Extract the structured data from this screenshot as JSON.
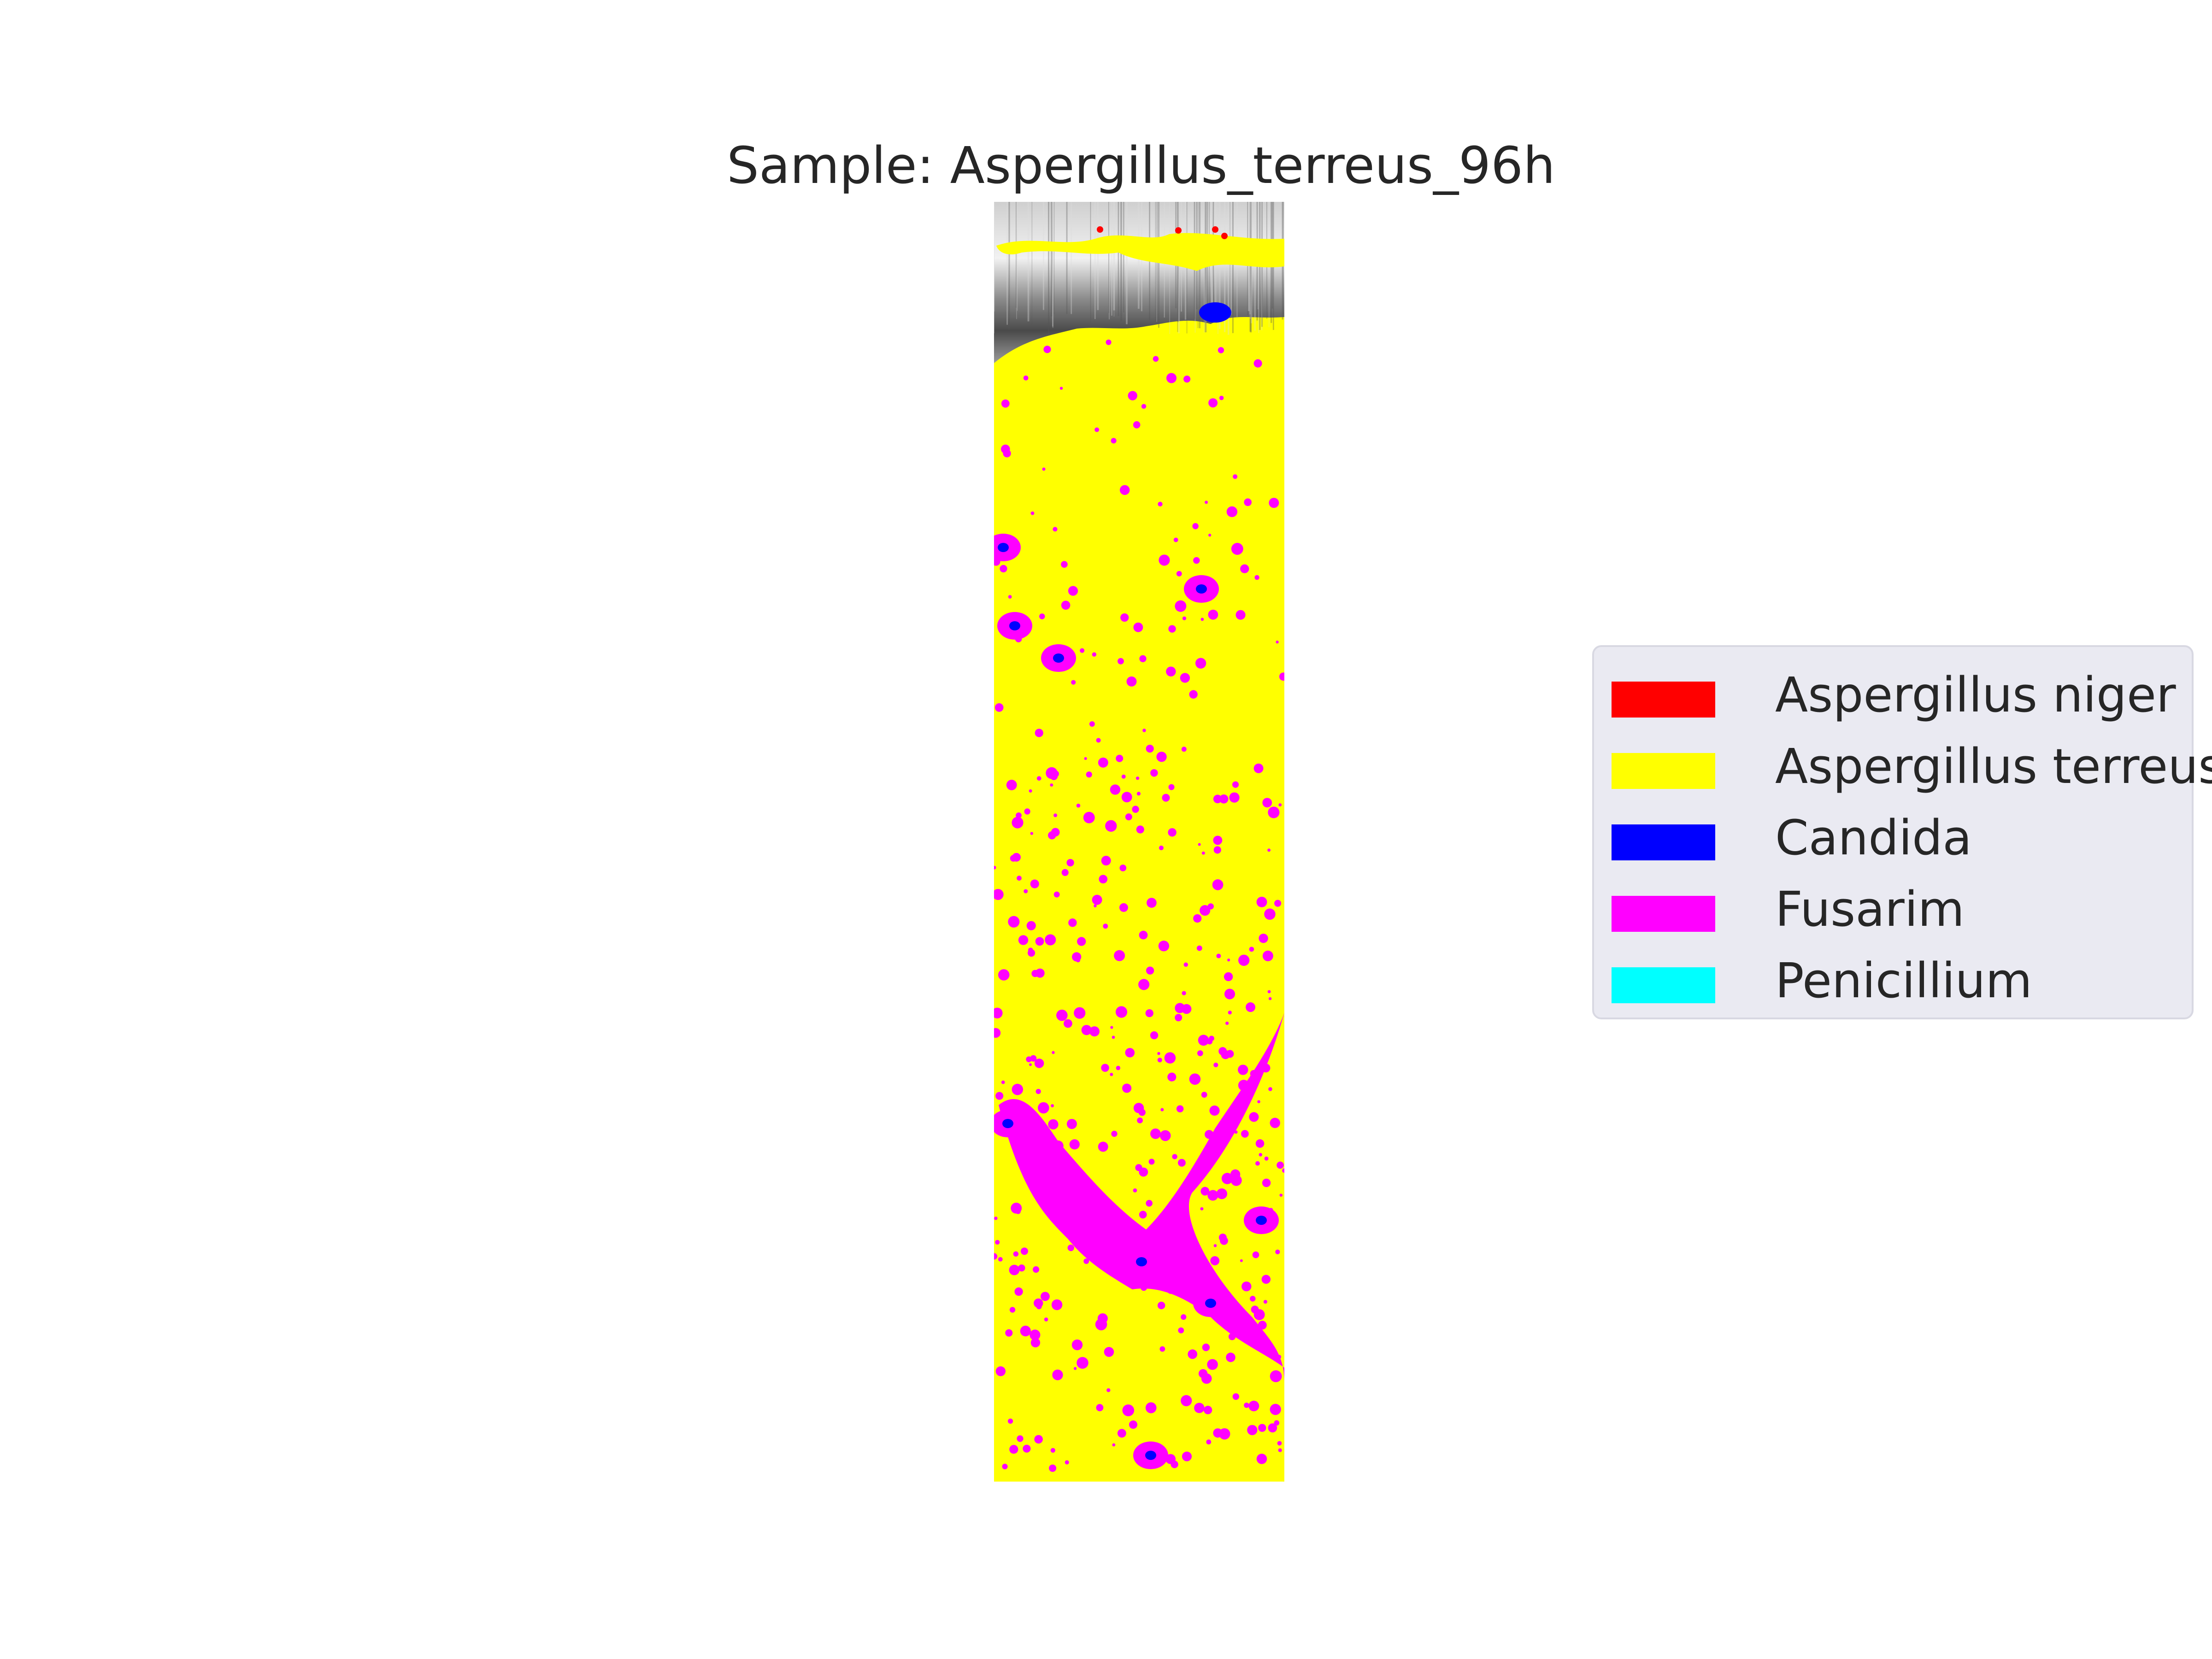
{
  "chart_data": {
    "type": "heatmap",
    "title": "Sample: Aspergillus_terreus_96h",
    "xlabel": "",
    "ylabel": "",
    "grid": false,
    "axes_visible": false,
    "legend_position": "right",
    "background_image": "grayscale",
    "categories": [
      "Aspergillus niger",
      "Aspergillus terreus",
      "Candida",
      "Fusarim",
      "Penicillium"
    ],
    "colors": {
      "Aspergillus niger": "#ff0000",
      "Aspergillus terreus": "#ffff00",
      "Candida": "#0000ff",
      "Fusarim": "#ff00ff",
      "Penicillium": "#00ffff"
    },
    "dominant_class": "Aspergillus terreus",
    "secondary_class": "Fusarim"
  }
}
